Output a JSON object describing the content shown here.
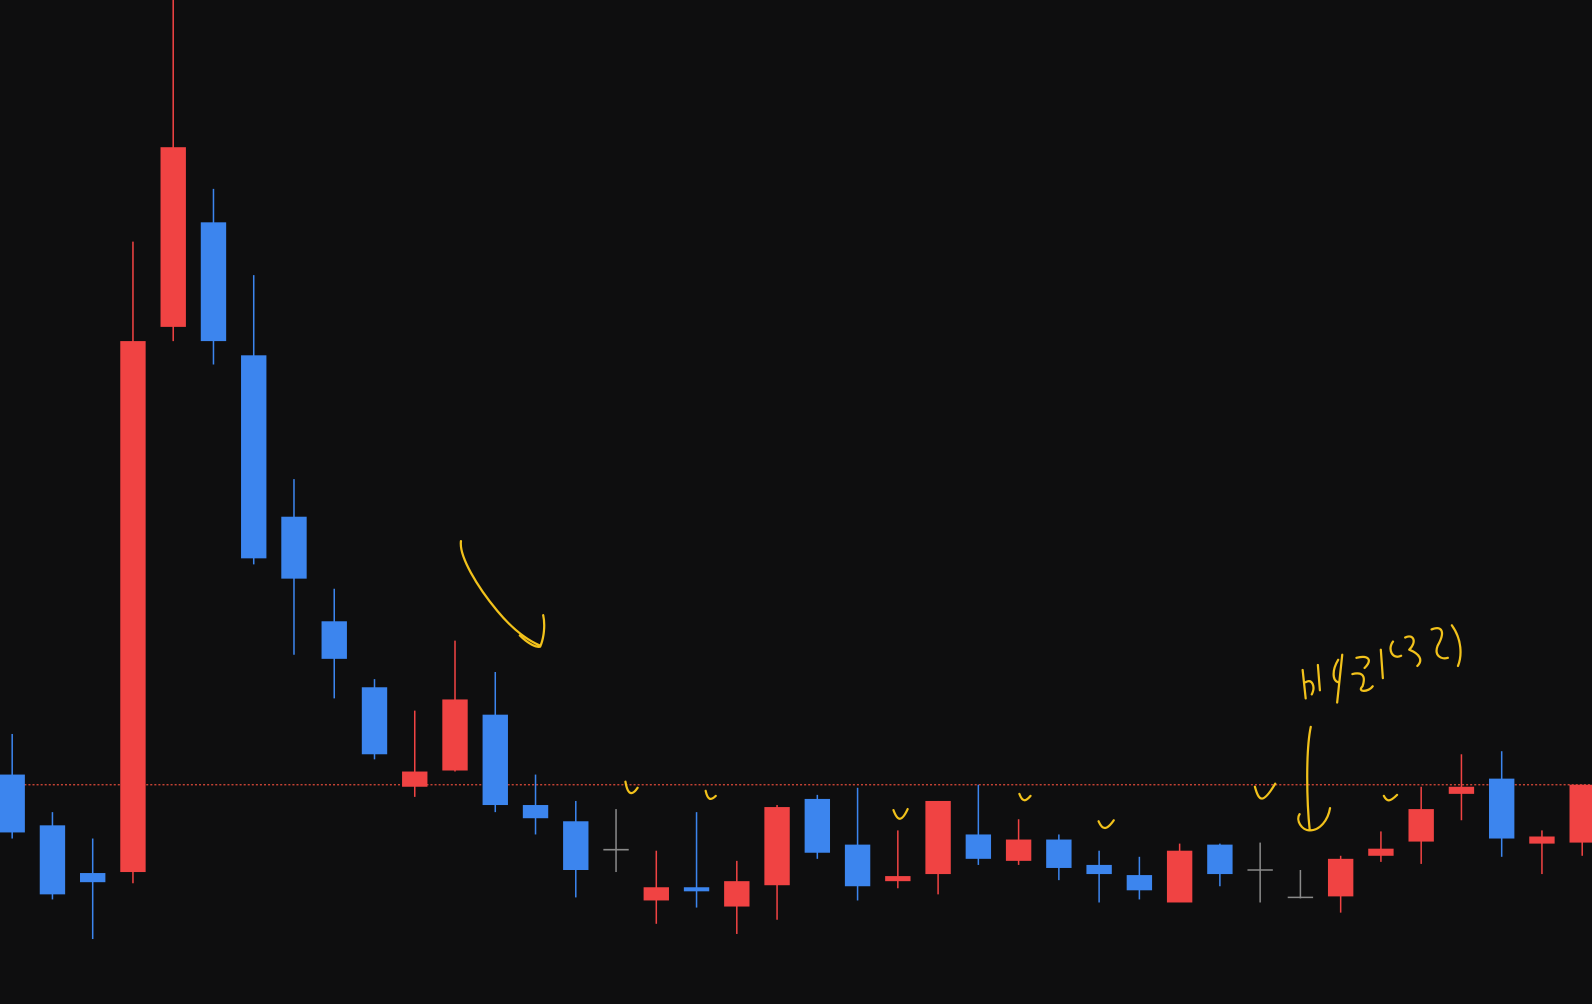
{
  "chart_data": {
    "type": "candlestick",
    "ylim": [
      0,
      989
    ],
    "up_color": "#f04343",
    "down_color": "#3c85ee",
    "flat_color": "#8a8a8a",
    "reference_line": 216,
    "reference_color": "#e04a3a",
    "open": [
      226,
      176,
      129,
      130,
      667,
      770,
      639,
      480,
      377,
      312,
      214,
      230,
      285,
      196,
      180,
      152,
      102,
      115,
      96,
      117,
      202,
      157,
      121,
      128,
      167,
      141,
      162,
      137,
      127,
      100,
      157,
      132,
      105,
      106,
      146,
      160,
      207,
      222,
      158,
      159
    ],
    "high": [
      266,
      189,
      163,
      751,
      989,
      803,
      718,
      517,
      409,
      320,
      289,
      358,
      327,
      226,
      200,
      192,
      151,
      189,
      141,
      196,
      206,
      213,
      171,
      200,
      216,
      182,
      167,
      151,
      145,
      158,
      158,
      159,
      132,
      146,
      170,
      214,
      246,
      249,
      171,
      216
    ],
    "low": [
      163,
      103,
      64,
      119,
      653,
      630,
      433,
      344,
      301,
      241,
      204,
      229,
      189,
      167,
      105,
      130,
      79,
      95,
      69,
      83,
      143,
      102,
      114,
      108,
      137,
      137,
      122,
      100,
      103,
      100,
      116,
      100,
      104,
      90,
      140,
      138,
      181,
      145,
      128,
      146
    ],
    "close": [
      169,
      108,
      120,
      653,
      844,
      653,
      439,
      419,
      340,
      246,
      229,
      300,
      196,
      183,
      132,
      152,
      115,
      111,
      121,
      194,
      149,
      116,
      126,
      200,
      143,
      162,
      134,
      128,
      112,
      151,
      128,
      132,
      105,
      143,
      153,
      192,
      214,
      163,
      165,
      216
    ]
  }
}
